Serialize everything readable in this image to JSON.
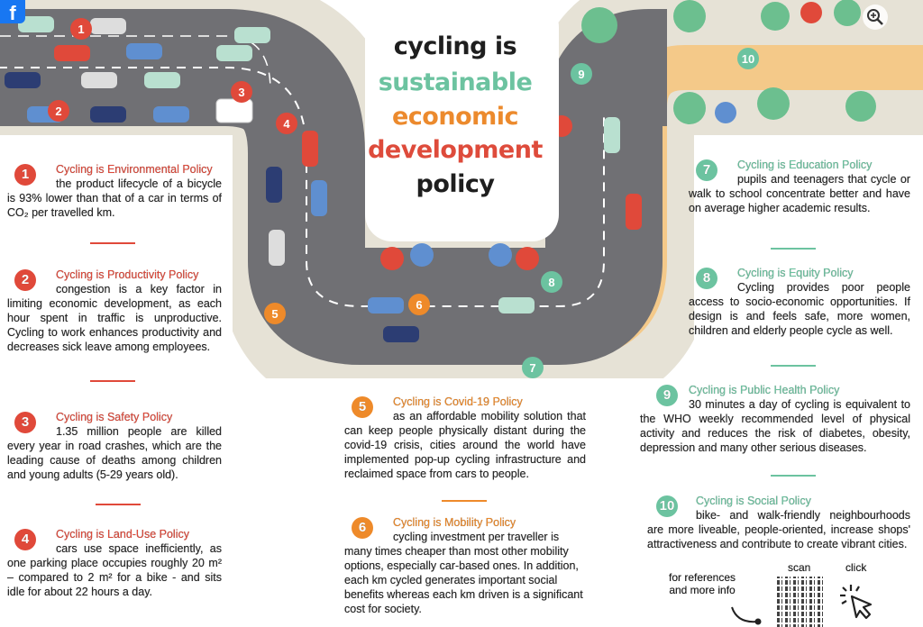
{
  "viewer": {
    "facebook_icon": "facebook-icon",
    "zoom_icon": "zoom-in-icon"
  },
  "title": {
    "line1": "cycling is",
    "line2": "sustainable",
    "line3": "economic",
    "line4": "development",
    "line5": "policy",
    "colors": {
      "line1": "#1e1e1e",
      "line2": "#6cc3a0",
      "line3": "#ec8a2d",
      "line4": "#de4b3b",
      "line5": "#1e1e1e"
    }
  },
  "colors": {
    "red": "#e0493a",
    "orange": "#ee8a2a",
    "green": "#6cc3a0",
    "road": "#6f6f73",
    "sidewalk": "#e6e2d6",
    "bikepath": "#f4c989"
  },
  "map_markers": [
    "1",
    "2",
    "3",
    "4",
    "5",
    "6",
    "7",
    "8",
    "9",
    "10"
  ],
  "policies": [
    {
      "num": "1",
      "title": "Cycling is Environmental Policy",
      "body": "the product lifecycle of a bicycle is 93% lower than that of a car in terms of CO₂ per travelled km."
    },
    {
      "num": "2",
      "title": "Cycling is Productivity Policy",
      "body": "congestion is a key factor in limiting economic development, as each hour spent in traffic is unproductive. Cycling to work enhances productivity and decreases sick leave among employees."
    },
    {
      "num": "3",
      "title": "Cycling is Safety Policy",
      "body": "1.35 million people are killed every year in road crashes, which are the leading cause of deaths among children and young adults (5-29 years old)."
    },
    {
      "num": "4",
      "title": "Cycling is Land-Use Policy",
      "body": "cars use space inefficiently, as one parking place occupies roughly 20 m² – compared to 2 m² for a bike - and sits idle for about 22 hours a day."
    },
    {
      "num": "5",
      "title": "Cycling is Covid-19 Policy",
      "body": "as an affordable mobility solution that can keep people physically distant during the covid-19 crisis, cities around the world have implemented pop-up cycling infrastructure and reclaimed space from cars to people."
    },
    {
      "num": "6",
      "title": "Cycling is Mobility Policy",
      "body": "cycling investment per traveller is many times cheaper than most other mobility options, especially car-based ones. In addition, each km cycled generates important social benefits whereas each km driven is a significant cost for society."
    },
    {
      "num": "7",
      "title": "Cycling is Education Policy",
      "body": "pupils and teenagers that cycle or walk to school concentrate better and have on average higher academic results."
    },
    {
      "num": "8",
      "title": "Cycling is Equity Policy",
      "body": "Cycling provides poor people access to socio-economic opportunities. If design is and feels safe, more women, children and elderly people cycle as well."
    },
    {
      "num": "9",
      "title": "Cycling is Public Health Policy",
      "body": "30 minutes a day of cycling is equivalent to the WHO weekly recommended level of physical activity and reduces the risk of diabetes, obesity, depression and many other serious diseases."
    },
    {
      "num": "10",
      "title": "Cycling is Social Policy",
      "body": "bike- and walk-friendly neighbourhoods are more liveable, people-oriented, increase shops' attractiveness and contribute to create vibrant cities."
    }
  ],
  "footer": {
    "refs_line1": "for references",
    "refs_line2": "and more info",
    "scan": "scan",
    "click": "click",
    "qr_icon": "qr-code-icon",
    "click_icon": "cursor-click-icon"
  }
}
